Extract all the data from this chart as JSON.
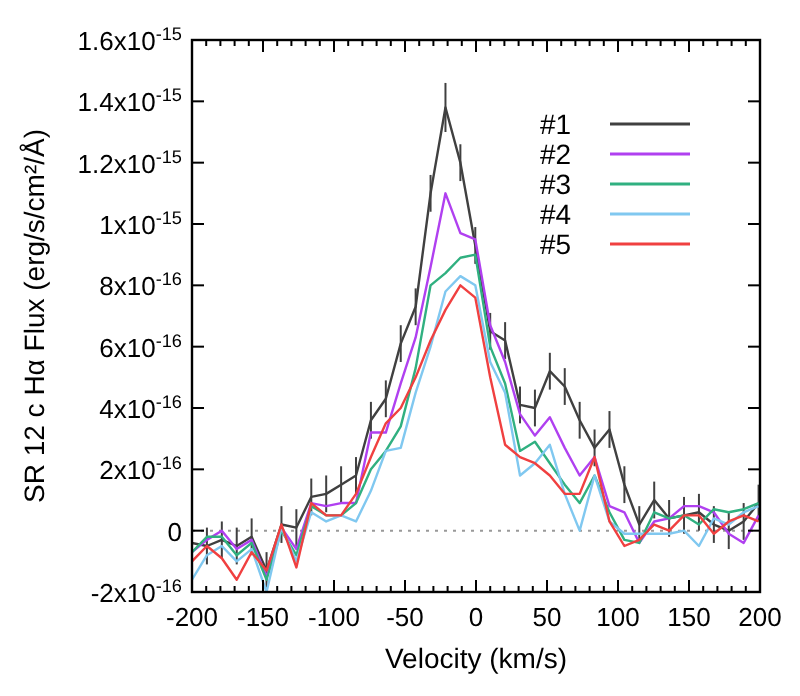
{
  "chart_data": {
    "type": "line",
    "xlabel": "Velocity (km/s)",
    "ylabel": "SR 12 c Hα Flux (erg/s/cm²/Å)",
    "x": [
      -200,
      -189.5,
      -179,
      -168.5,
      -158,
      -147.5,
      -137,
      -126.5,
      -116,
      -105.5,
      -95,
      -84.5,
      -74,
      -63.5,
      -53,
      -42.5,
      -32,
      -21.5,
      -11,
      -0.5,
      10,
      20.5,
      31,
      41.5,
      52,
      62.5,
      73,
      83.5,
      94,
      104.5,
      115,
      125.5,
      136,
      146.5,
      157,
      167.5,
      178,
      188.5,
      199
    ],
    "xlim": [
      -200,
      200
    ],
    "xticks": [
      -200,
      {
        "value": -190,
        "label": null
      },
      {
        "value": -180,
        "label": null
      },
      {
        "value": -170,
        "label": null
      },
      {
        "value": -160,
        "label": null
      },
      -150,
      {
        "value": -140,
        "label": null
      },
      {
        "value": -130,
        "label": null
      },
      {
        "value": -120,
        "label": null
      },
      {
        "value": -110,
        "label": null
      },
      -100,
      {
        "value": -90,
        "label": null
      },
      {
        "value": -80,
        "label": null
      },
      {
        "value": -70,
        "label": null
      },
      {
        "value": -60,
        "label": null
      },
      -50,
      {
        "value": -40,
        "label": null
      },
      {
        "value": -30,
        "label": null
      },
      {
        "value": -20,
        "label": null
      },
      {
        "value": -10,
        "label": null
      },
      0,
      {
        "value": 10,
        "label": null
      },
      {
        "value": 20,
        "label": null
      },
      {
        "value": 30,
        "label": null
      },
      {
        "value": 40,
        "label": null
      },
      50,
      {
        "value": 60,
        "label": null
      },
      {
        "value": 70,
        "label": null
      },
      {
        "value": 80,
        "label": null
      },
      {
        "value": 90,
        "label": null
      },
      100,
      {
        "value": 110,
        "label": null
      },
      {
        "value": 120,
        "label": null
      },
      {
        "value": 130,
        "label": null
      },
      {
        "value": 140,
        "label": null
      },
      150,
      {
        "value": 160,
        "label": null
      },
      {
        "value": 170,
        "label": null
      },
      {
        "value": 180,
        "label": null
      },
      {
        "value": 190,
        "label": null
      },
      200
    ],
    "ylim": [
      -2e-16,
      1.6e-15
    ],
    "yticks": [
      {
        "value": -2e-16,
        "label": "-2x10$^{-16}$"
      },
      {
        "value": 0,
        "label": "0"
      },
      {
        "value": 2e-16,
        "label": "2x10$^{-16}$"
      },
      {
        "value": 4e-16,
        "label": "4x10$^{-16}$"
      },
      {
        "value": 6e-16,
        "label": "6x10$^{-16}$"
      },
      {
        "value": 8e-16,
        "label": "8x10$^{-16}$"
      },
      {
        "value": 1e-15,
        "label": "1x10$^{-15}$"
      },
      {
        "value": 1.2e-15,
        "label": "1.2x10$^{-15}$"
      },
      {
        "value": 1.4e-15,
        "label": "1.4x10$^{-15}$"
      },
      {
        "value": 1.6e-15,
        "label": "1.6x10$^{-15}$"
      }
    ],
    "legend": "top right",
    "marker": "none",
    "line_style": "solid",
    "grid": false,
    "ref_lines": [
      {
        "axis": "y",
        "value": 0,
        "color": "#999999",
        "line_style": "dotted"
      }
    ],
    "series": [
      {
        "name": "#1",
        "color": "#404040",
        "values": [
          -4e-17,
          -5e-17,
          -3e-17,
          -5e-17,
          -2e-17,
          -1.3e-16,
          2e-17,
          1e-17,
          1.1e-16,
          1.2e-16,
          1.5e-16,
          1.8e-16,
          3.6e-16,
          4.3e-16,
          6.1e-16,
          7.3e-16,
          1.1e-15,
          1.38e-15,
          1.2e-15,
          9.3e-16,
          6.5e-16,
          6.2e-16,
          4.1e-16,
          4e-16,
          5.2e-16,
          4.7e-16,
          3.6e-16,
          2.7e-16,
          3.3e-16,
          1.5e-16,
          2e-17,
          1e-16,
          4e-17,
          5e-17,
          6e-17,
          2e-17,
          0,
          3e-17,
          9e-17
        ],
        "errors": [
          6e-17,
          6e-17,
          6e-17,
          6e-17,
          6e-17,
          6e-17,
          6e-17,
          6e-17,
          6e-17,
          6e-17,
          6e-17,
          6e-17,
          6e-17,
          6e-17,
          6e-17,
          6e-17,
          6e-17,
          8e-17,
          6e-17,
          6e-17,
          6e-17,
          6e-17,
          6e-17,
          6e-17,
          6e-17,
          6e-17,
          6e-17,
          6e-17,
          6e-17,
          6e-17,
          6e-17,
          6e-17,
          6e-17,
          6e-17,
          6e-17,
          6e-17,
          6e-17,
          6e-17,
          6e-17
        ]
      },
      {
        "name": "#2",
        "color": "#b040f0",
        "values": [
          -7e-17,
          -3e-17,
          0,
          -6e-17,
          -3e-17,
          -1.5e-16,
          1e-17,
          -6e-17,
          9e-17,
          8e-17,
          9e-17,
          9e-17,
          3.2e-16,
          3.2e-16,
          4.8e-16,
          6.3e-16,
          8.6e-16,
          1.1e-15,
          9.7e-16,
          9.5e-16,
          6.7e-16,
          5.5e-16,
          3.8e-16,
          3.1e-16,
          3.7e-16,
          2.7e-16,
          1.8e-16,
          2.4e-16,
          8e-17,
          6e-17,
          -4e-17,
          3e-17,
          4e-17,
          8e-17,
          8e-17,
          6e-17,
          -1e-17,
          -4e-17,
          5e-17
        ]
      },
      {
        "name": "#3",
        "color": "#30b080",
        "values": [
          -7e-17,
          -2e-17,
          -2e-17,
          -8e-17,
          -4e-17,
          -1.6e-16,
          0,
          -8e-17,
          8e-17,
          5e-17,
          5e-17,
          9e-17,
          2e-16,
          2.6e-16,
          3.4e-16,
          5.3e-16,
          8e-16,
          8.4e-16,
          8.9e-16,
          9e-16,
          6e-16,
          4.8e-16,
          2.6e-16,
          2.9e-16,
          2.2e-16,
          1.5e-16,
          9e-17,
          1.8e-16,
          6e-17,
          -3e-17,
          -4e-17,
          6e-17,
          4e-17,
          5e-17,
          2e-17,
          7e-17,
          6e-17,
          7e-17,
          9e-17
        ]
      },
      {
        "name": "#4",
        "color": "#80c8f0",
        "values": [
          -1.6e-16,
          -8e-17,
          -5e-17,
          -1e-16,
          -6e-17,
          -2e-16,
          1e-17,
          -1e-16,
          6e-17,
          3e-17,
          5e-17,
          3e-17,
          1.3e-16,
          2.6e-16,
          2.7e-16,
          4.5e-16,
          6e-16,
          7.8e-16,
          8.3e-16,
          8e-16,
          5.5e-16,
          4.5e-16,
          1.8e-16,
          2.2e-16,
          2.8e-16,
          1.2e-16,
          0,
          1.8e-16,
          3e-17,
          -1e-17,
          -1e-17,
          -1e-17,
          -1e-17,
          0,
          -5e-17,
          4e-17,
          2e-17,
          6e-17,
          8e-17
        ]
      },
      {
        "name": "#5",
        "color": "#f04040",
        "values": [
          -1e-16,
          -5e-17,
          -9e-17,
          -1.6e-16,
          -7e-17,
          -1.3e-16,
          2e-17,
          -1.2e-16,
          9e-17,
          5e-17,
          5e-17,
          1.2e-16,
          2.4e-16,
          3.5e-16,
          4e-16,
          5e-16,
          6.2e-16,
          7.2e-16,
          8e-16,
          7.6e-16,
          5e-16,
          2.8e-16,
          2.4e-16,
          2.2e-16,
          1.8e-16,
          1.2e-16,
          1.2e-16,
          2.4e-16,
          3e-17,
          -5e-17,
          -3e-17,
          2e-17,
          0,
          5e-17,
          5e-17,
          -1e-17,
          3e-17,
          5e-17,
          3e-17
        ]
      }
    ]
  }
}
